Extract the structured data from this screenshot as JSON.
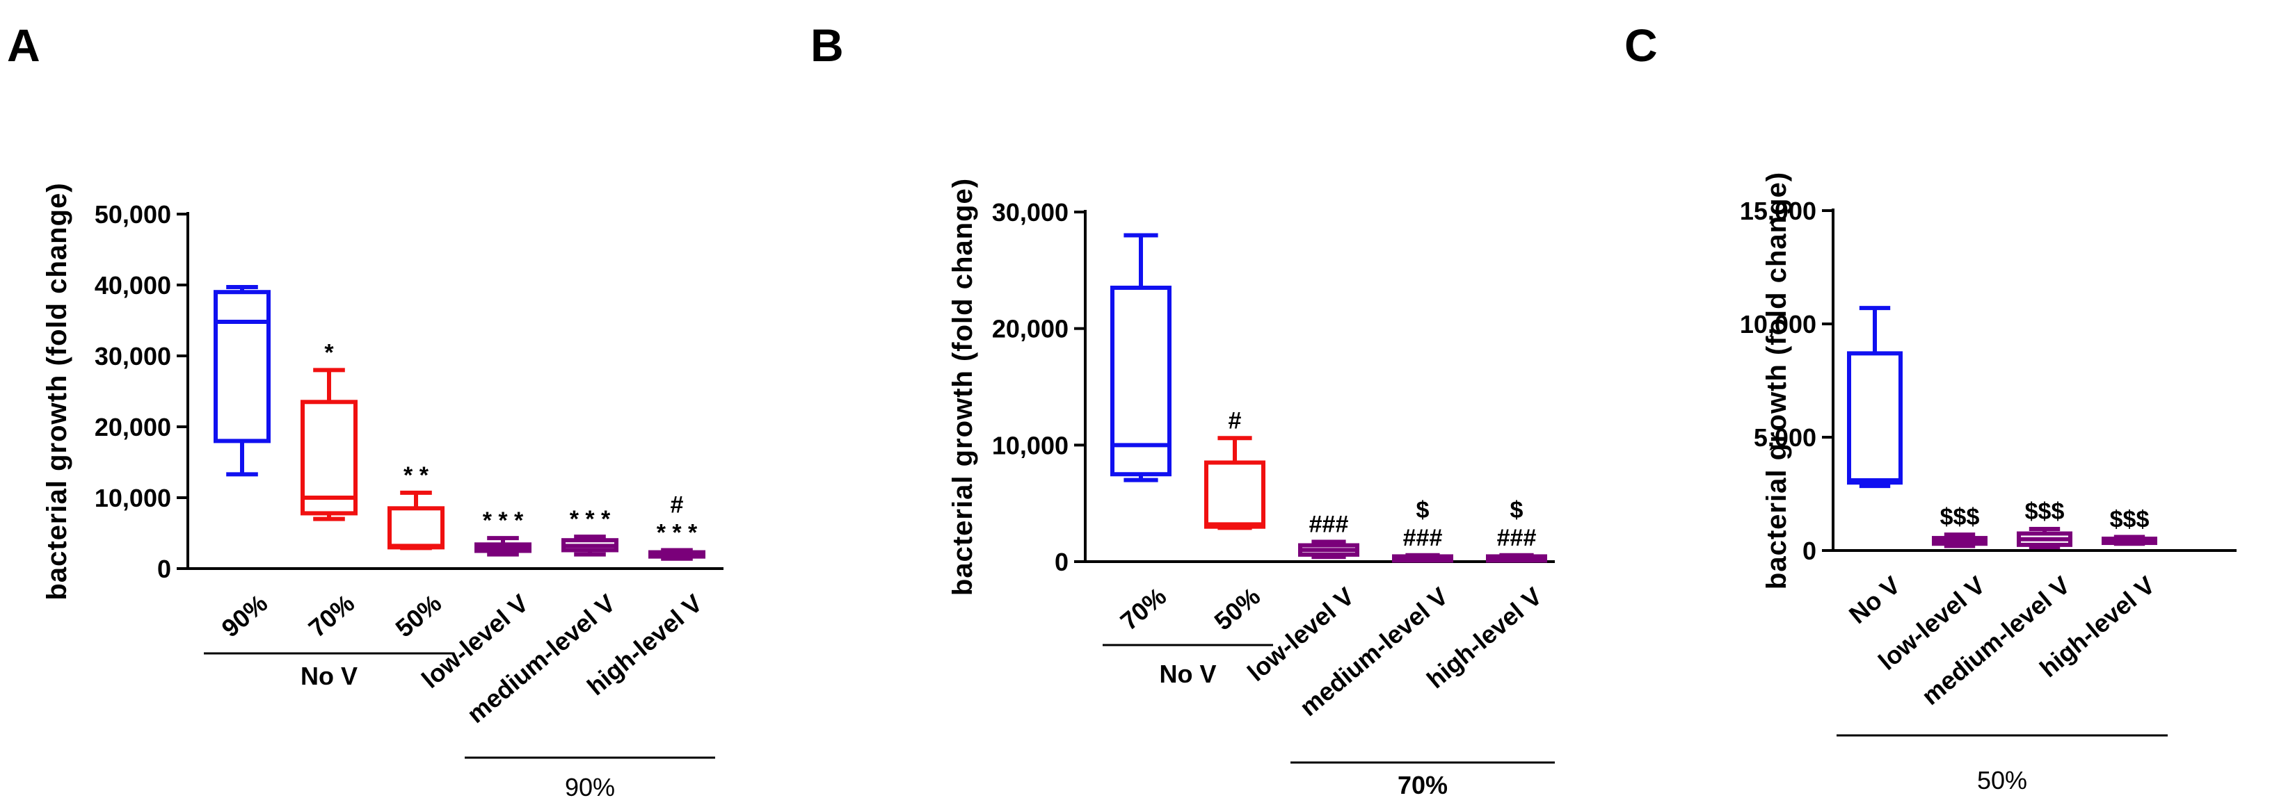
{
  "figure": {
    "y_axis_label": "bacterial growth (fold change)"
  },
  "chart_data": [
    {
      "type": "box",
      "panel_label": "A",
      "ylabel": "bacterial growth (fold change)",
      "ylim": [
        0,
        50000
      ],
      "yticks": [
        0,
        10000,
        20000,
        30000,
        40000,
        50000
      ],
      "ytick_labels": [
        "0",
        "10,000",
        "20,000",
        "30,000",
        "40,000",
        "50,000"
      ],
      "categories": [
        "90%",
        "70%",
        "50%",
        "low-level V",
        "medium-level V",
        "high-level V"
      ],
      "series": [
        {
          "name": "90%",
          "color": "#1010f0",
          "whisker_low": 13300,
          "q1": 18000,
          "median": 34800,
          "q3": 39000,
          "whisker_high": 39700,
          "annotations": []
        },
        {
          "name": "70%",
          "color": "#f01010",
          "whisker_low": 7000,
          "q1": 7800,
          "median": 10000,
          "q3": 23500,
          "whisker_high": 28000,
          "annotations": [
            "*"
          ]
        },
        {
          "name": "50%",
          "color": "#f01010",
          "whisker_low": 2900,
          "q1": 3000,
          "median": 3200,
          "q3": 8500,
          "whisker_high": 10700,
          "annotations": [
            "* *"
          ]
        },
        {
          "name": "low-level V",
          "color": "#7a007a",
          "whisker_low": 2000,
          "q1": 2500,
          "median": 3000,
          "q3": 3400,
          "whisker_high": 4300,
          "annotations": [
            "* * *"
          ]
        },
        {
          "name": "medium-level V",
          "color": "#7a007a",
          "whisker_low": 2000,
          "q1": 2600,
          "median": 3200,
          "q3": 4000,
          "whisker_high": 4500,
          "annotations": [
            "* * *"
          ]
        },
        {
          "name": "high-level V",
          "color": "#7a007a",
          "whisker_low": 1400,
          "q1": 1700,
          "median": 2000,
          "q3": 2300,
          "whisker_high": 2600,
          "annotations": [
            "* * *",
            "#"
          ]
        }
      ],
      "groups": [
        {
          "label": "No V",
          "from": 0,
          "to": 2,
          "style": "bold"
        },
        {
          "label": "90%",
          "from": 3,
          "to": 5,
          "style": "normal"
        }
      ]
    },
    {
      "type": "box",
      "panel_label": "B",
      "ylabel": "bacterial growth (fold change)",
      "ylim": [
        0,
        30000
      ],
      "yticks": [
        0,
        10000,
        20000,
        30000
      ],
      "ytick_labels": [
        "0",
        "10,000",
        "20,000",
        "30,000"
      ],
      "categories": [
        "70%",
        "50%",
        "low-level V",
        "medium-level V",
        "high-level V"
      ],
      "series": [
        {
          "name": "70%",
          "color": "#1010f0",
          "whisker_low": 7000,
          "q1": 7500,
          "median": 10000,
          "q3": 23500,
          "whisker_high": 28000,
          "annotations": []
        },
        {
          "name": "50%",
          "color": "#f01010",
          "whisker_low": 2900,
          "q1": 3000,
          "median": 3200,
          "q3": 8500,
          "whisker_high": 10600,
          "annotations": [
            "#"
          ]
        },
        {
          "name": "low-level V",
          "color": "#7a007a",
          "whisker_low": 400,
          "q1": 600,
          "median": 1000,
          "q3": 1400,
          "whisker_high": 1700,
          "annotations": [
            "###"
          ]
        },
        {
          "name": "medium-level V",
          "color": "#7a007a",
          "whisker_low": 100,
          "q1": 150,
          "median": 300,
          "q3": 450,
          "whisker_high": 550,
          "annotations": [
            "###",
            "$"
          ]
        },
        {
          "name": "high-level V",
          "color": "#7a007a",
          "whisker_low": 100,
          "q1": 150,
          "median": 300,
          "q3": 450,
          "whisker_high": 550,
          "annotations": [
            "###",
            "$"
          ]
        }
      ],
      "groups": [
        {
          "label": "No V",
          "from": 0,
          "to": 1,
          "style": "bold"
        },
        {
          "label": "70%",
          "from": 2,
          "to": 4,
          "style": "bold"
        }
      ]
    },
    {
      "type": "box",
      "panel_label": "C",
      "ylabel": "bacterial growth (fold change)",
      "ylim": [
        0,
        15000
      ],
      "yticks": [
        0,
        5000,
        10000,
        15000
      ],
      "ytick_labels": [
        "0",
        "5,000",
        "10,000",
        "15,000"
      ],
      "categories": [
        "No V",
        "low-level V",
        "medium-level V",
        "high-level V"
      ],
      "series": [
        {
          "name": "No V",
          "color": "#1010f0",
          "whisker_low": 2850,
          "q1": 3000,
          "median": 3100,
          "q3": 8700,
          "whisker_high": 10700,
          "annotations": []
        },
        {
          "name": "low-level V",
          "color": "#7a007a",
          "whisker_low": 200,
          "q1": 300,
          "median": 450,
          "q3": 550,
          "whisker_high": 700,
          "annotations": [
            "$$$"
          ]
        },
        {
          "name": "medium-level V",
          "color": "#7a007a",
          "whisker_low": 150,
          "q1": 250,
          "median": 500,
          "q3": 750,
          "whisker_high": 950,
          "annotations": [
            "$$$"
          ]
        },
        {
          "name": "high-level V",
          "color": "#7a007a",
          "whisker_low": 300,
          "q1": 380,
          "median": 450,
          "q3": 520,
          "whisker_high": 600,
          "annotations": [
            "$$$"
          ]
        }
      ],
      "groups": [
        {
          "label": "50%",
          "from": 0,
          "to": 3,
          "style": "normal"
        }
      ]
    }
  ]
}
